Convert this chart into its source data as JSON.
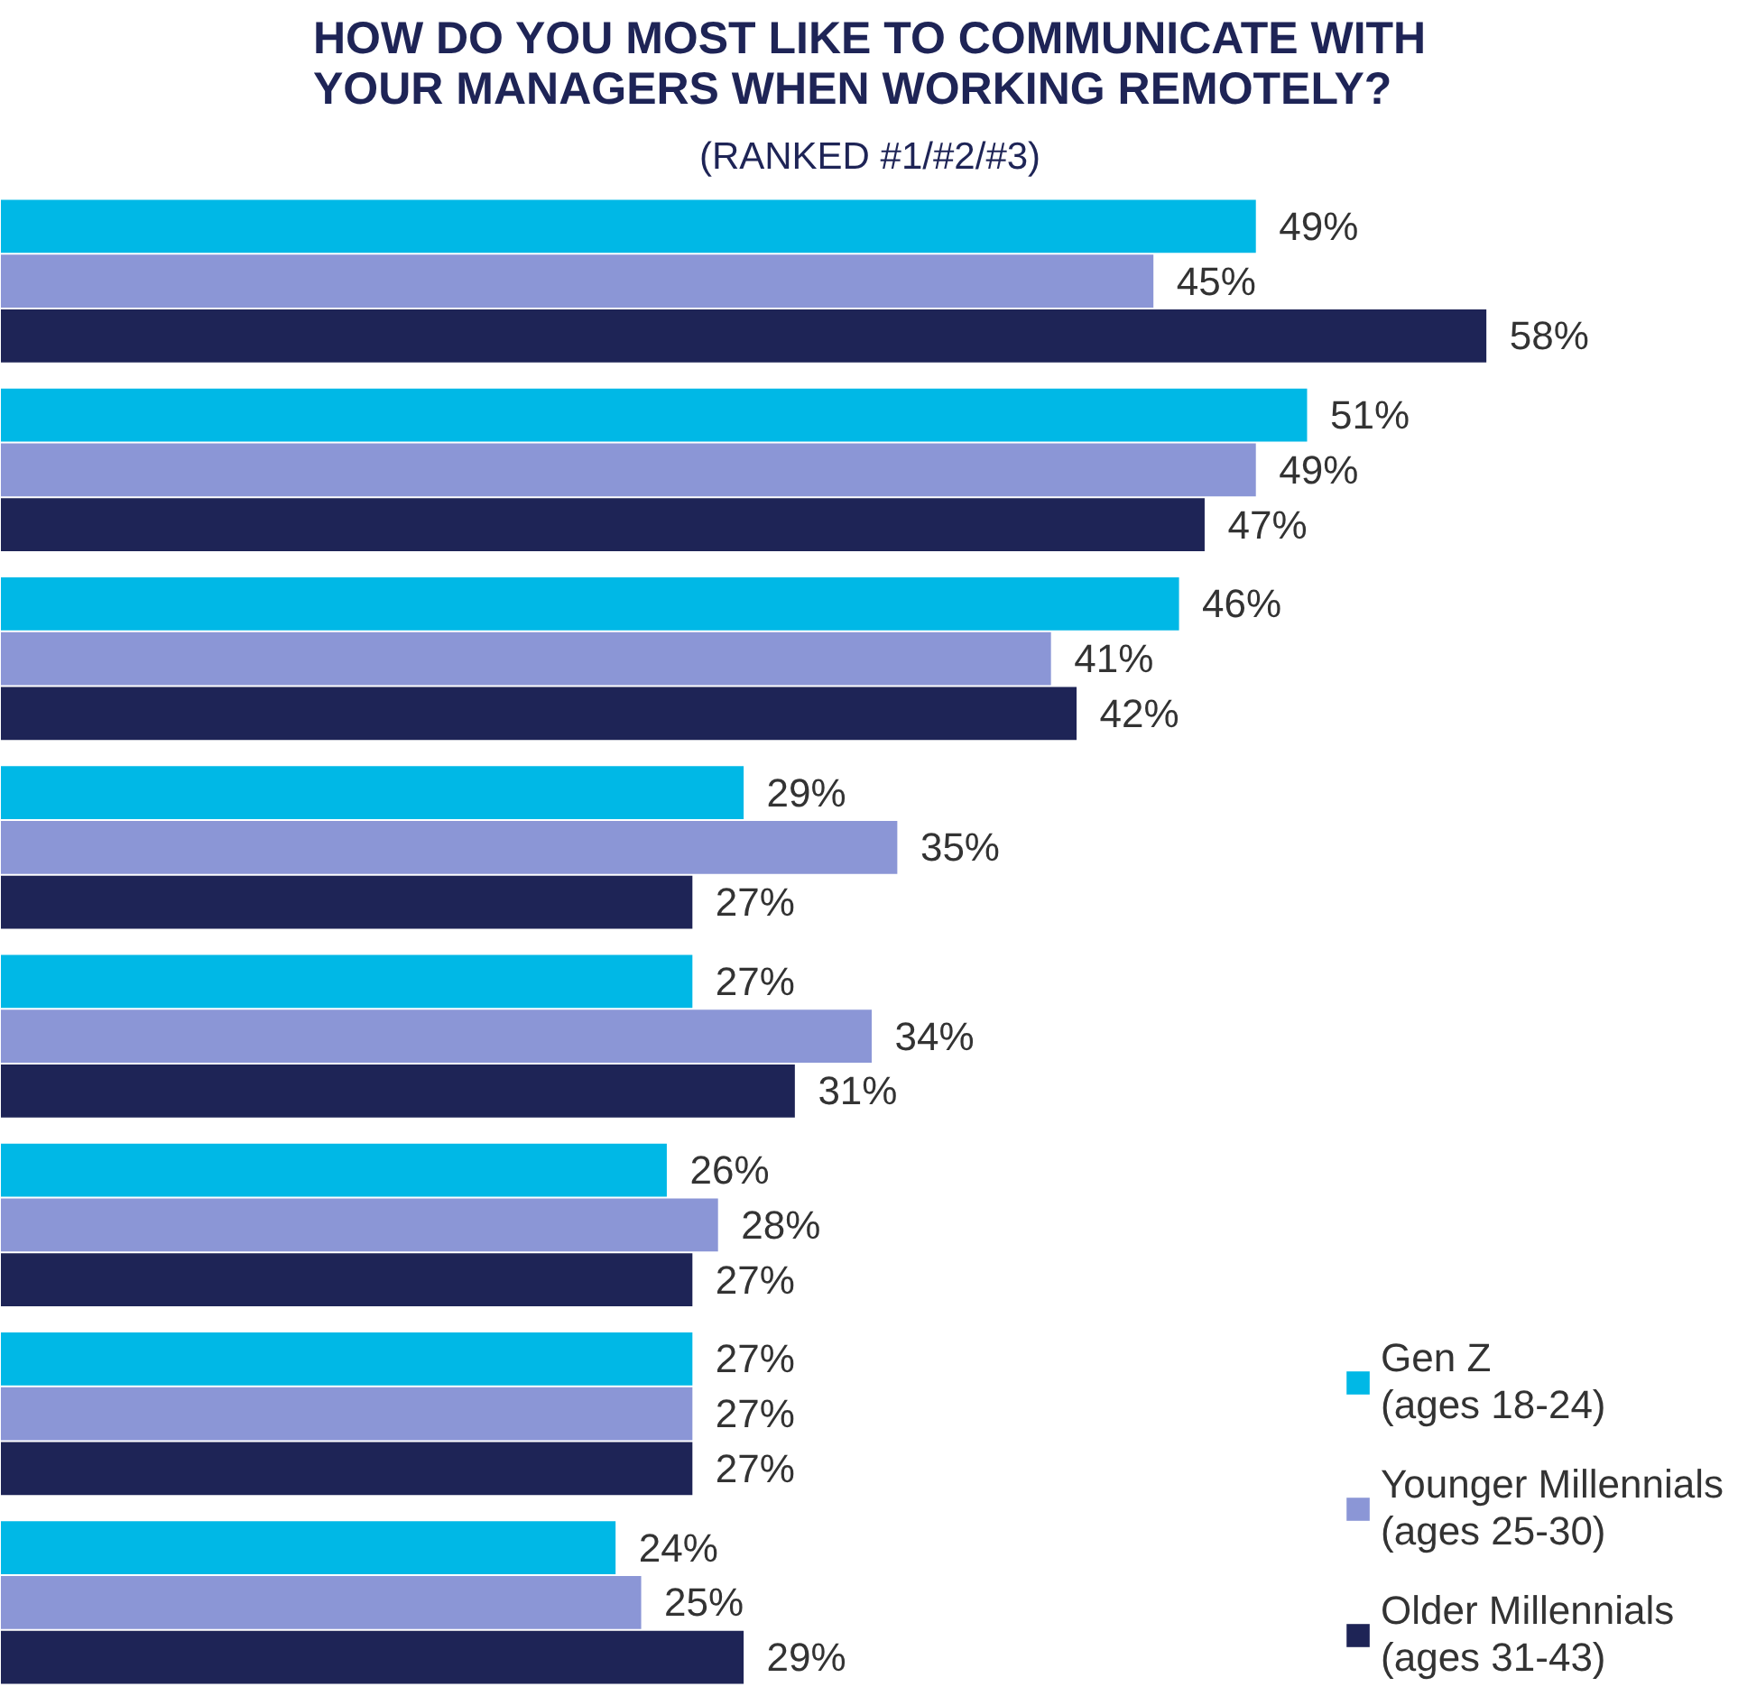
{
  "chart_data": {
    "type": "bar",
    "orientation": "horizontal",
    "title": "HOW DO YOU MOST LIKE TO COMMUNICATE WITH\nYOUR MANAGERS WHEN WORKING REMOTELY?",
    "subtitle": "(RANKED #1/#2/#3)",
    "categories": [
      null,
      null,
      null,
      null,
      null,
      null,
      null,
      null
    ],
    "tick_labels": false,
    "grid": false,
    "legend": "bottom right",
    "series": [
      {
        "name": "Gen Z\n(ages 18-24)",
        "color": "#00b8e6",
        "values": [
          49,
          51,
          46,
          29,
          27,
          26,
          27,
          24
        ],
        "value_labels": [
          "49%",
          "51%",
          "46%",
          "29%",
          "27%",
          "26%",
          "27%",
          "24%"
        ]
      },
      {
        "name": "Younger Millennials\n(ages 25-30)",
        "color": "#8b96d6",
        "values": [
          45,
          49,
          41,
          35,
          34,
          28,
          27,
          25
        ],
        "value_labels": [
          "45%",
          "49%",
          "41%",
          "35%",
          "34%",
          "28%",
          "27%",
          "25%"
        ]
      },
      {
        "name": "Older Millennials\n(ages 31-43)",
        "color": "#1e2456",
        "values": [
          58,
          47,
          42,
          27,
          31,
          27,
          27,
          29
        ],
        "value_labels": [
          "58%",
          "47%",
          "42%",
          "27%",
          "31%",
          "27%",
          "27%",
          "29%"
        ]
      }
    ]
  }
}
